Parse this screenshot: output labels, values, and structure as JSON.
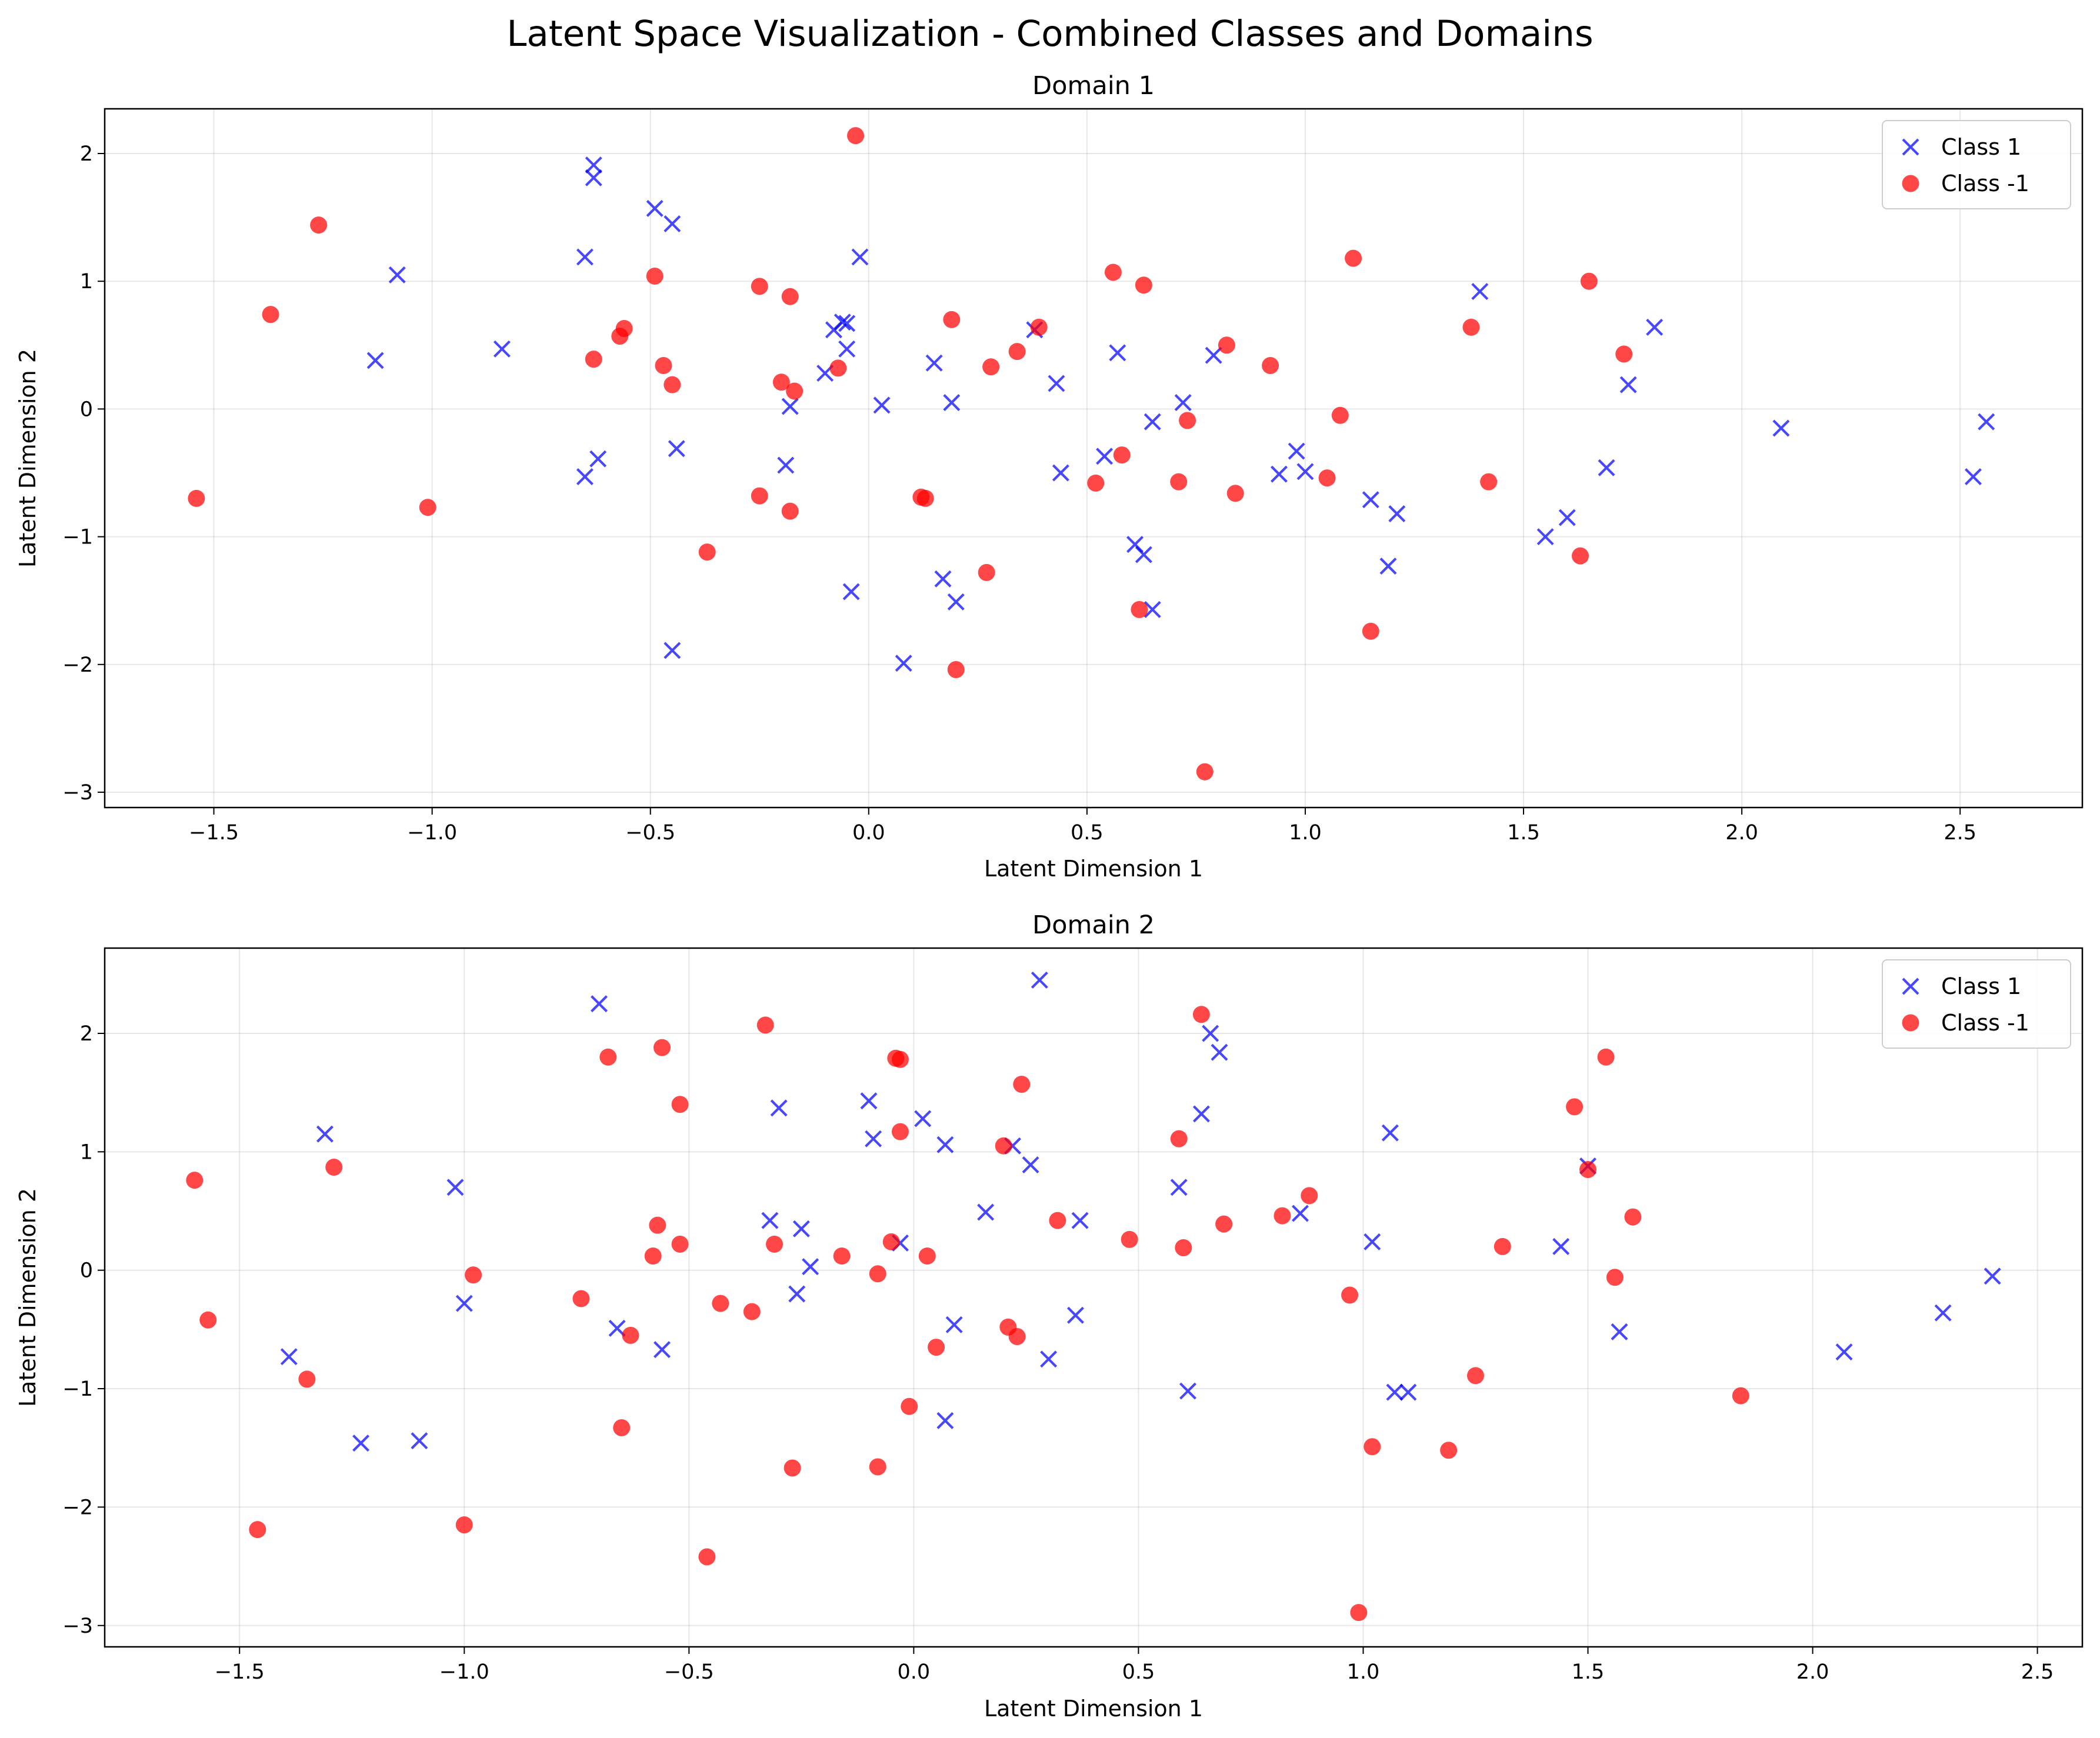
{
  "title": "Latent Space Visualization - Combined Classes and Domains",
  "colors": {
    "class1": "#0000ff",
    "classNeg1": "#ff0000",
    "grid": "#b0b0b0"
  },
  "markers": {
    "class1": "x",
    "classNeg1": "circle"
  },
  "chart_data": [
    {
      "type": "scatter",
      "title": "Domain 1",
      "xlabel": "Latent Dimension 1",
      "ylabel": "Latent Dimension 2",
      "xlim": [
        -1.75,
        2.78
      ],
      "ylim": [
        -3.12,
        2.35
      ],
      "xticks": [
        -1.5,
        -1.0,
        -0.5,
        0.0,
        0.5,
        1.0,
        1.5,
        2.0,
        2.5
      ],
      "xtick_labels": [
        "−1.5",
        "−1.0",
        "−0.5",
        "0.0",
        "0.5",
        "1.0",
        "1.5",
        "2.0",
        "2.5"
      ],
      "yticks": [
        -3,
        -2,
        -1,
        0,
        1,
        2
      ],
      "ytick_labels": [
        "−3",
        "−2",
        "−1",
        "0",
        "1",
        "2"
      ],
      "grid": true,
      "legend": "upper-right",
      "series": [
        {
          "name": "Class 1",
          "marker": "x",
          "color": "#0000ff",
          "points": [
            [
              -0.63,
              1.91
            ],
            [
              -0.63,
              1.81
            ],
            [
              -0.49,
              1.57
            ],
            [
              -0.45,
              1.45
            ],
            [
              -0.65,
              1.19
            ],
            [
              -1.08,
              1.05
            ],
            [
              -1.13,
              0.38
            ],
            [
              -0.84,
              0.47
            ],
            [
              -0.02,
              1.19
            ],
            [
              -0.06,
              0.68
            ],
            [
              -0.05,
              0.67
            ],
            [
              -0.08,
              0.62
            ],
            [
              -0.05,
              0.47
            ],
            [
              -0.1,
              0.28
            ],
            [
              -0.18,
              0.02
            ],
            [
              0.03,
              0.03
            ],
            [
              0.15,
              0.36
            ],
            [
              0.19,
              0.05
            ],
            [
              0.38,
              0.62
            ],
            [
              0.43,
              0.2
            ],
            [
              0.57,
              0.44
            ],
            [
              0.65,
              -0.1
            ],
            [
              0.72,
              0.05
            ],
            [
              0.79,
              0.42
            ],
            [
              -0.65,
              -0.53
            ],
            [
              -0.62,
              -0.39
            ],
            [
              -0.44,
              -0.31
            ],
            [
              -0.19,
              -0.44
            ],
            [
              -0.04,
              -1.43
            ],
            [
              0.17,
              -1.33
            ],
            [
              0.2,
              -1.51
            ],
            [
              0.08,
              -1.99
            ],
            [
              -0.45,
              -1.89
            ],
            [
              0.44,
              -0.5
            ],
            [
              0.54,
              -0.37
            ],
            [
              0.61,
              -1.06
            ],
            [
              0.63,
              -1.14
            ],
            [
              0.65,
              -1.57
            ],
            [
              0.94,
              -0.51
            ],
            [
              0.98,
              -0.33
            ],
            [
              1.0,
              -0.49
            ],
            [
              1.15,
              -0.71
            ],
            [
              1.21,
              -0.82
            ],
            [
              1.19,
              -1.23
            ],
            [
              1.4,
              0.92
            ],
            [
              1.55,
              -1.0
            ],
            [
              1.6,
              -0.85
            ],
            [
              1.69,
              -0.46
            ],
            [
              1.74,
              0.19
            ],
            [
              1.8,
              0.64
            ],
            [
              2.09,
              -0.15
            ],
            [
              2.53,
              -0.53
            ],
            [
              2.56,
              -0.1
            ]
          ]
        },
        {
          "name": "Class -1",
          "marker": "o",
          "color": "#ff0000",
          "points": [
            [
              -1.26,
              1.44
            ],
            [
              -1.37,
              0.74
            ],
            [
              -1.54,
              -0.7
            ],
            [
              -1.01,
              -0.77
            ],
            [
              -0.63,
              0.39
            ],
            [
              -0.57,
              0.57
            ],
            [
              -0.56,
              0.63
            ],
            [
              -0.49,
              1.04
            ],
            [
              -0.47,
              0.34
            ],
            [
              -0.45,
              0.19
            ],
            [
              -0.25,
              0.96
            ],
            [
              -0.18,
              0.88
            ],
            [
              -0.2,
              0.21
            ],
            [
              -0.17,
              0.14
            ],
            [
              -0.07,
              0.32
            ],
            [
              -0.03,
              2.14
            ],
            [
              0.19,
              0.7
            ],
            [
              0.28,
              0.33
            ],
            [
              0.34,
              0.45
            ],
            [
              0.39,
              0.64
            ],
            [
              0.56,
              1.07
            ],
            [
              0.63,
              0.97
            ],
            [
              0.82,
              0.5
            ],
            [
              0.92,
              0.34
            ],
            [
              1.11,
              1.18
            ],
            [
              1.38,
              0.64
            ],
            [
              1.65,
              1.0
            ],
            [
              1.73,
              0.43
            ],
            [
              0.73,
              -0.09
            ],
            [
              1.08,
              -0.05
            ],
            [
              -0.25,
              -0.68
            ],
            [
              -0.18,
              -0.8
            ],
            [
              -0.37,
              -1.12
            ],
            [
              0.12,
              -0.69
            ],
            [
              0.13,
              -0.7
            ],
            [
              0.27,
              -1.28
            ],
            [
              0.2,
              -2.04
            ],
            [
              0.52,
              -0.58
            ],
            [
              0.58,
              -0.36
            ],
            [
              0.62,
              -1.57
            ],
            [
              0.71,
              -0.57
            ],
            [
              0.84,
              -0.66
            ],
            [
              1.05,
              -0.54
            ],
            [
              1.42,
              -0.57
            ],
            [
              1.63,
              -1.15
            ],
            [
              1.15,
              -1.74
            ],
            [
              0.77,
              -2.84
            ]
          ]
        }
      ]
    },
    {
      "type": "scatter",
      "title": "Domain 2",
      "xlabel": "Latent Dimension 1",
      "ylabel": "Latent Dimension 2",
      "xlim": [
        -1.8,
        2.6
      ],
      "ylim": [
        -3.18,
        2.72
      ],
      "xticks": [
        -1.5,
        -1.0,
        -0.5,
        0.0,
        0.5,
        1.0,
        1.5,
        2.0,
        2.5
      ],
      "xtick_labels": [
        "−1.5",
        "−1.0",
        "−0.5",
        "0.0",
        "0.5",
        "1.0",
        "1.5",
        "2.0",
        "2.5"
      ],
      "yticks": [
        -3,
        -2,
        -1,
        0,
        1,
        2
      ],
      "ytick_labels": [
        "−3",
        "−2",
        "−1",
        "0",
        "1",
        "2"
      ],
      "grid": true,
      "legend": "upper-right",
      "series": [
        {
          "name": "Class 1",
          "marker": "x",
          "color": "#0000ff",
          "points": [
            [
              -0.7,
              2.25
            ],
            [
              0.28,
              2.45
            ],
            [
              0.66,
              2.0
            ],
            [
              0.68,
              1.84
            ],
            [
              -1.31,
              1.15
            ],
            [
              -1.02,
              0.7
            ],
            [
              -0.3,
              1.37
            ],
            [
              -0.1,
              1.43
            ],
            [
              -0.09,
              1.11
            ],
            [
              0.02,
              1.28
            ],
            [
              0.07,
              1.06
            ],
            [
              0.22,
              1.05
            ],
            [
              0.26,
              0.89
            ],
            [
              0.16,
              0.49
            ],
            [
              0.37,
              0.42
            ],
            [
              -0.32,
              0.42
            ],
            [
              -0.25,
              0.35
            ],
            [
              -0.23,
              0.03
            ],
            [
              -0.03,
              0.23
            ],
            [
              0.59,
              0.7
            ],
            [
              0.64,
              1.32
            ],
            [
              0.86,
              0.48
            ],
            [
              1.02,
              0.24
            ],
            [
              1.06,
              1.16
            ],
            [
              1.44,
              0.2
            ],
            [
              1.5,
              0.88
            ],
            [
              -1.0,
              -0.28
            ],
            [
              -1.39,
              -0.73
            ],
            [
              -1.23,
              -1.46
            ],
            [
              -1.1,
              -1.44
            ],
            [
              -0.66,
              -0.49
            ],
            [
              -0.56,
              -0.67
            ],
            [
              -0.26,
              -0.2
            ],
            [
              0.09,
              -0.46
            ],
            [
              0.07,
              -1.27
            ],
            [
              0.3,
              -0.75
            ],
            [
              0.36,
              -0.38
            ],
            [
              0.61,
              -1.02
            ],
            [
              1.07,
              -1.03
            ],
            [
              1.1,
              -1.03
            ],
            [
              1.57,
              -0.52
            ],
            [
              2.07,
              -0.69
            ],
            [
              2.29,
              -0.36
            ],
            [
              2.4,
              -0.05
            ]
          ]
        },
        {
          "name": "Class -1",
          "marker": "o",
          "color": "#ff0000",
          "points": [
            [
              -0.68,
              1.8
            ],
            [
              -0.56,
              1.88
            ],
            [
              -0.52,
              1.4
            ],
            [
              -0.33,
              2.07
            ],
            [
              -0.04,
              1.79
            ],
            [
              -0.03,
              1.78
            ],
            [
              -0.03,
              1.17
            ],
            [
              0.24,
              1.57
            ],
            [
              0.2,
              1.05
            ],
            [
              0.64,
              2.16
            ],
            [
              0.59,
              1.11
            ],
            [
              1.47,
              1.38
            ],
            [
              1.54,
              1.8
            ],
            [
              1.5,
              0.85
            ],
            [
              1.6,
              0.45
            ],
            [
              -1.6,
              0.76
            ],
            [
              -1.29,
              0.87
            ],
            [
              -0.98,
              -0.04
            ],
            [
              -0.74,
              -0.24
            ],
            [
              -0.57,
              0.38
            ],
            [
              -0.58,
              0.12
            ],
            [
              -0.52,
              0.22
            ],
            [
              -0.31,
              0.22
            ],
            [
              -0.16,
              0.12
            ],
            [
              -0.08,
              -0.03
            ],
            [
              -0.05,
              0.24
            ],
            [
              0.03,
              0.12
            ],
            [
              0.32,
              0.42
            ],
            [
              0.48,
              0.26
            ],
            [
              0.6,
              0.19
            ],
            [
              0.69,
              0.39
            ],
            [
              0.82,
              0.46
            ],
            [
              0.88,
              0.63
            ],
            [
              1.31,
              0.2
            ],
            [
              1.56,
              -0.06
            ],
            [
              0.97,
              -0.21
            ],
            [
              -1.57,
              -0.42
            ],
            [
              -1.35,
              -0.92
            ],
            [
              -0.43,
              -0.28
            ],
            [
              -0.36,
              -0.35
            ],
            [
              -0.63,
              -0.55
            ],
            [
              -0.65,
              -1.33
            ],
            [
              -1.46,
              -2.19
            ],
            [
              -1.0,
              -2.15
            ],
            [
              -0.46,
              -2.42
            ],
            [
              -0.27,
              -1.67
            ],
            [
              -0.08,
              -1.66
            ],
            [
              -0.01,
              -1.15
            ],
            [
              0.05,
              -0.65
            ],
            [
              0.21,
              -0.48
            ],
            [
              0.23,
              -0.56
            ],
            [
              1.25,
              -0.89
            ],
            [
              1.02,
              -1.49
            ],
            [
              1.19,
              -1.52
            ],
            [
              1.84,
              -1.06
            ],
            [
              0.99,
              -2.89
            ]
          ]
        }
      ]
    }
  ]
}
